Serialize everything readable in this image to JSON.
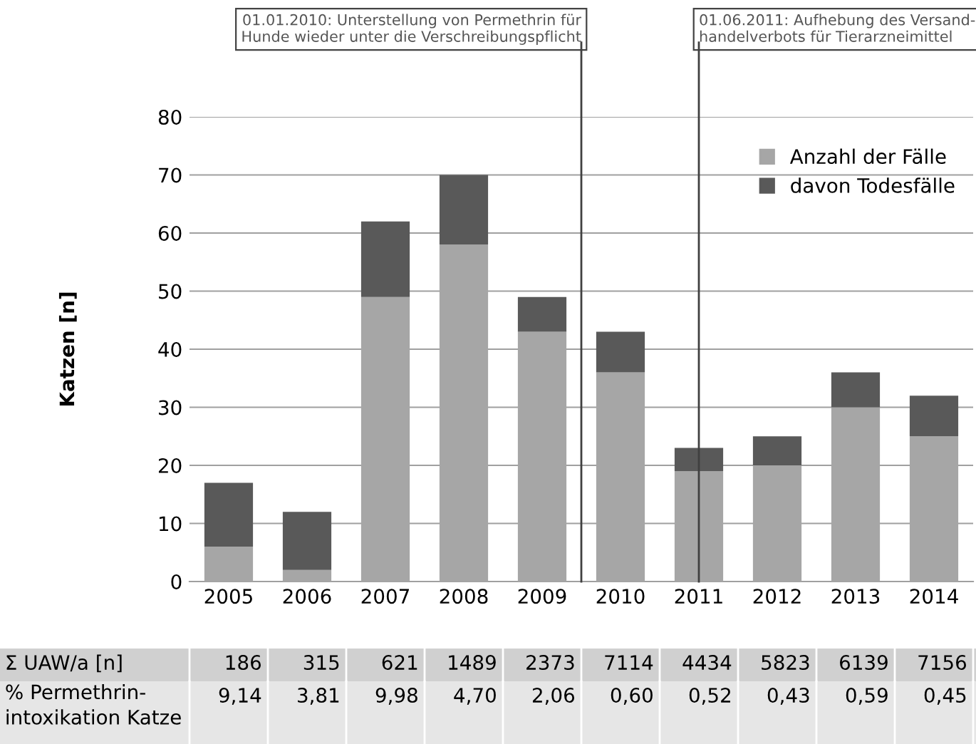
{
  "chart_data": {
    "type": "bar",
    "stacked": true,
    "ylabel": "Katzen [n]",
    "x": [
      2005,
      2006,
      2007,
      2008,
      2009,
      2010,
      2011,
      2012,
      2013,
      2014
    ],
    "xlim": [
      2004.5,
      2014.5
    ],
    "xticks": [
      2005,
      2006,
      2007,
      2008,
      2009,
      2010,
      2011,
      2012,
      2013,
      2014
    ],
    "ylim": [
      0,
      80
    ],
    "yticks": [
      0,
      10,
      20,
      30,
      40,
      50,
      60,
      70,
      80
    ],
    "grid": "y",
    "legend": "top right",
    "series": [
      {
        "name": "Anzahl der Fälle",
        "color": "#a6a6a6",
        "values": [
          6,
          2,
          49,
          58,
          43,
          36,
          19,
          20,
          30,
          25
        ]
      },
      {
        "name": "davon Todesfälle",
        "color": "#595959",
        "values": [
          11,
          10,
          13,
          12,
          6,
          7,
          4,
          5,
          6,
          7
        ]
      }
    ],
    "ref_lines": [
      {
        "axis": "x",
        "value": 2009.5,
        "label": "01.01.2010: Unterstellung von Permethrin für\nHunde wieder unter die Verschreibungspflicht",
        "color": "#404040"
      },
      {
        "axis": "x",
        "value": 2011,
        "label": "01.06.2011: Aufhebung des Versand-\nhandelverbots für Tierarzneimittel",
        "color": "#404040"
      }
    ],
    "annotations": [
      "Σ UAW/a [n]",
      "186",
      "315",
      "621",
      "1489",
      "2373",
      "7114",
      "4434",
      "5823",
      "6139",
      "7156",
      "% Permethrin-\nintoxikation Katze",
      "9,14",
      "3,81",
      "9,98",
      "4,70",
      "2,06",
      "0,60",
      "0,52",
      "0,43",
      "0,59",
      "0,45"
    ]
  }
}
